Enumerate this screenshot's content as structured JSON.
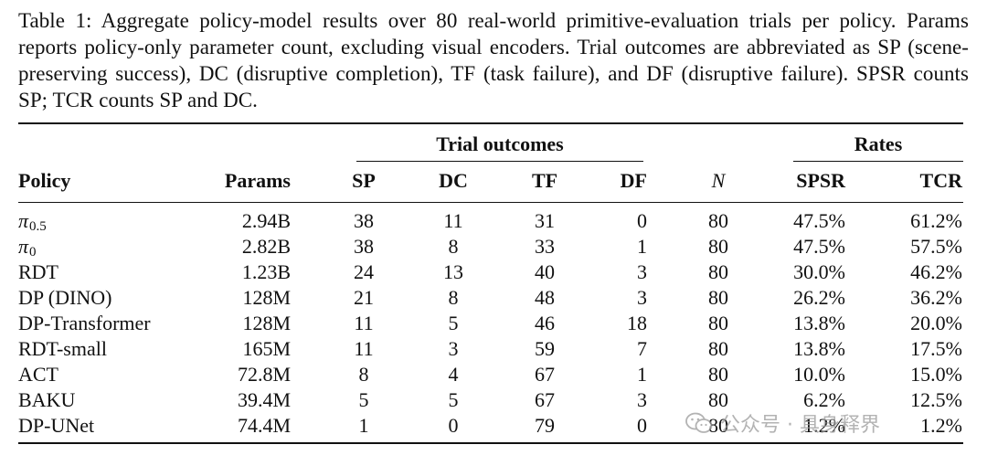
{
  "caption": "Table 1: Aggregate policy-model results over 80 real-world primitive-evaluation trials per policy. Params reports policy-only parameter count, excluding visual encoders. Trial outcomes are abbreviated as SP (scene-preserving success), DC (disruptive completion), TF (task failure), and DF (disruptive failure). SPSR counts SP; TCR counts SP and DC.",
  "table": {
    "group_headers": {
      "trial_outcomes": "Trial outcomes",
      "rates": "Rates"
    },
    "columns": [
      "Policy",
      "Params",
      "SP",
      "DC",
      "TF",
      "DF",
      "N",
      "SPSR",
      "TCR"
    ],
    "rows": [
      {
        "policy": "π",
        "policy_sub": "0.5",
        "params": "2.94B",
        "sp": "38",
        "dc": "11",
        "tf": "31",
        "df": "0",
        "n": "80",
        "spsr": "47.5%",
        "tcr": "61.2%"
      },
      {
        "policy": "π",
        "policy_sub": "0",
        "params": "2.82B",
        "sp": "38",
        "dc": "8",
        "tf": "33",
        "df": "1",
        "n": "80",
        "spsr": "47.5%",
        "tcr": "57.5%"
      },
      {
        "policy": "RDT",
        "policy_sub": "",
        "params": "1.23B",
        "sp": "24",
        "dc": "13",
        "tf": "40",
        "df": "3",
        "n": "80",
        "spsr": "30.0%",
        "tcr": "46.2%"
      },
      {
        "policy": "DP (DINO)",
        "policy_sub": "",
        "params": "128M",
        "sp": "21",
        "dc": "8",
        "tf": "48",
        "df": "3",
        "n": "80",
        "spsr": "26.2%",
        "tcr": "36.2%"
      },
      {
        "policy": "DP-Transformer",
        "policy_sub": "",
        "params": "128M",
        "sp": "11",
        "dc": "5",
        "tf": "46",
        "df": "18",
        "n": "80",
        "spsr": "13.8%",
        "tcr": "20.0%"
      },
      {
        "policy": "RDT-small",
        "policy_sub": "",
        "params": "165M",
        "sp": "11",
        "dc": "3",
        "tf": "59",
        "df": "7",
        "n": "80",
        "spsr": "13.8%",
        "tcr": "17.5%"
      },
      {
        "policy": "ACT",
        "policy_sub": "",
        "params": "72.8M",
        "sp": "8",
        "dc": "4",
        "tf": "67",
        "df": "1",
        "n": "80",
        "spsr": "10.0%",
        "tcr": "15.0%"
      },
      {
        "policy": "BAKU",
        "policy_sub": "",
        "params": "39.4M",
        "sp": "5",
        "dc": "5",
        "tf": "67",
        "df": "3",
        "n": "80",
        "spsr": "6.2%",
        "tcr": "12.5%"
      },
      {
        "policy": "DP-UNet",
        "policy_sub": "",
        "params": "74.4M",
        "sp": "1",
        "dc": "0",
        "tf": "79",
        "df": "0",
        "n": "80",
        "spsr": "1.2%",
        "tcr": "1.2%"
      }
    ]
  },
  "watermark": {
    "text": "公众号 · 具身释界",
    "icon": "wechat-icon",
    "color": "#9a9a9a"
  }
}
